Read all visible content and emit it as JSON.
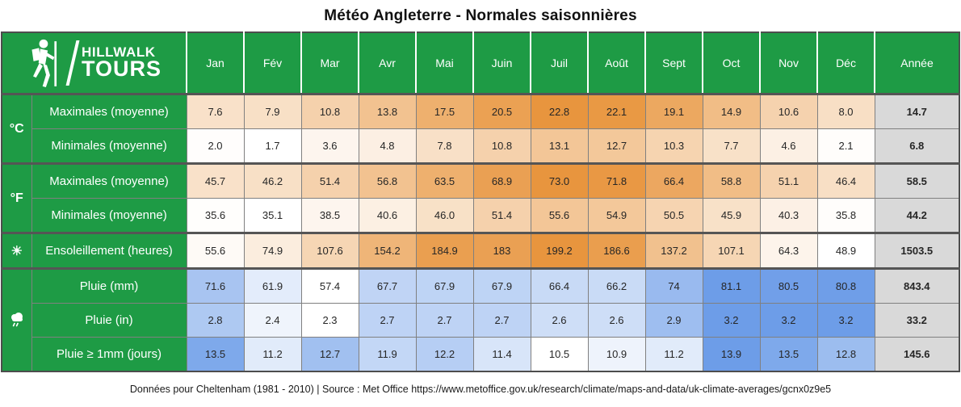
{
  "title": "Météo Angleterre - Normales saisonnières",
  "logo": {
    "line1": "HILLWALK",
    "line2": "TOURS",
    "hiker_icon": "hiker-icon",
    "slash": "logo-slash"
  },
  "footer": "Données pour Cheltenham (1981 - 2010) | Source : Met Office https://www.metoffice.gov.uk/research/climate/maps-and-data/uk-climate-averages/gcnx0z9e5",
  "colors": {
    "green": "#1e9b45",
    "heat_max": "#e8953e",
    "rain_max": "#6d9de8",
    "annual_bg": "#d9d9d9",
    "grid": "#808080",
    "outer_border": "#4d4d4d"
  },
  "chart_data": {
    "type": "table",
    "title": "Météo Angleterre - Normales saisonnières",
    "columns": [
      "Jan",
      "Fév",
      "Mar",
      "Avr",
      "Mai",
      "Juin",
      "Juil",
      "Août",
      "Sept",
      "Oct",
      "Nov",
      "Déc",
      "Année"
    ],
    "row_groups": [
      {
        "unit_label": "°C",
        "unit_name": "unit-celsius-label",
        "icon_kind": "text",
        "scale": "heat",
        "scale_scope": "group",
        "rows": [
          {
            "label": "Maximales (moyenne)",
            "values": [
              "7.6",
              "7.9",
              "10.8",
              "13.8",
              "17.5",
              "20.5",
              "22.8",
              "22.1",
              "19.1",
              "14.9",
              "10.6",
              "8.0"
            ],
            "annual": "14.7"
          },
          {
            "label": "Minimales (moyenne)",
            "values": [
              "2.0",
              "1.7",
              "3.6",
              "4.8",
              "7.8",
              "10.8",
              "13.1",
              "12.7",
              "10.3",
              "7.7",
              "4.6",
              "2.1"
            ],
            "annual": "6.8"
          }
        ]
      },
      {
        "unit_label": "°F",
        "unit_name": "unit-fahrenheit-label",
        "icon_kind": "text",
        "scale": "heat",
        "scale_scope": "group",
        "rows": [
          {
            "label": "Maximales (moyenne)",
            "values": [
              "45.7",
              "46.2",
              "51.4",
              "56.8",
              "63.5",
              "68.9",
              "73.0",
              "71.8",
              "66.4",
              "58.8",
              "51.1",
              "46.4"
            ],
            "annual": "58.5"
          },
          {
            "label": "Minimales (moyenne)",
            "values": [
              "35.6",
              "35.1",
              "38.5",
              "40.6",
              "46.0",
              "51.4",
              "55.6",
              "54.9",
              "50.5",
              "45.9",
              "40.3",
              "35.8"
            ],
            "annual": "44.2"
          }
        ]
      },
      {
        "unit_label": "☀",
        "unit_name": "sun-icon",
        "icon_kind": "glyph",
        "scale": "heat",
        "scale_scope": "row",
        "rows": [
          {
            "label": "Ensoleillement (heures)",
            "values": [
              "55.6",
              "74.9",
              "107.6",
              "154.2",
              "184.9",
              "183",
              "199.2",
              "186.6",
              "137.2",
              "107.1",
              "64.3",
              "48.9"
            ],
            "annual": "1503.5"
          }
        ]
      },
      {
        "unit_label": "rain",
        "unit_name": "rain-cloud-icon",
        "icon_kind": "svg",
        "scale": "rain",
        "scale_scope": "row",
        "rows": [
          {
            "label": "Pluie (mm)",
            "values": [
              "71.6",
              "61.9",
              "57.4",
              "67.7",
              "67.9",
              "67.9",
              "66.4",
              "66.2",
              "74",
              "81.1",
              "80.5",
              "80.8"
            ],
            "annual": "843.4"
          },
          {
            "label": "Pluie (in)",
            "values": [
              "2.8",
              "2.4",
              "2.3",
              "2.7",
              "2.7",
              "2.7",
              "2.6",
              "2.6",
              "2.9",
              "3.2",
              "3.2",
              "3.2"
            ],
            "annual": "33.2"
          },
          {
            "label": "Pluie ≥ 1mm (jours)",
            "values": [
              "13.5",
              "11.2",
              "12.7",
              "11.9",
              "12.2",
              "11.4",
              "10.5",
              "10.9",
              "11.2",
              "13.9",
              "13.5",
              "12.8"
            ],
            "annual": "145.6"
          }
        ]
      }
    ]
  }
}
